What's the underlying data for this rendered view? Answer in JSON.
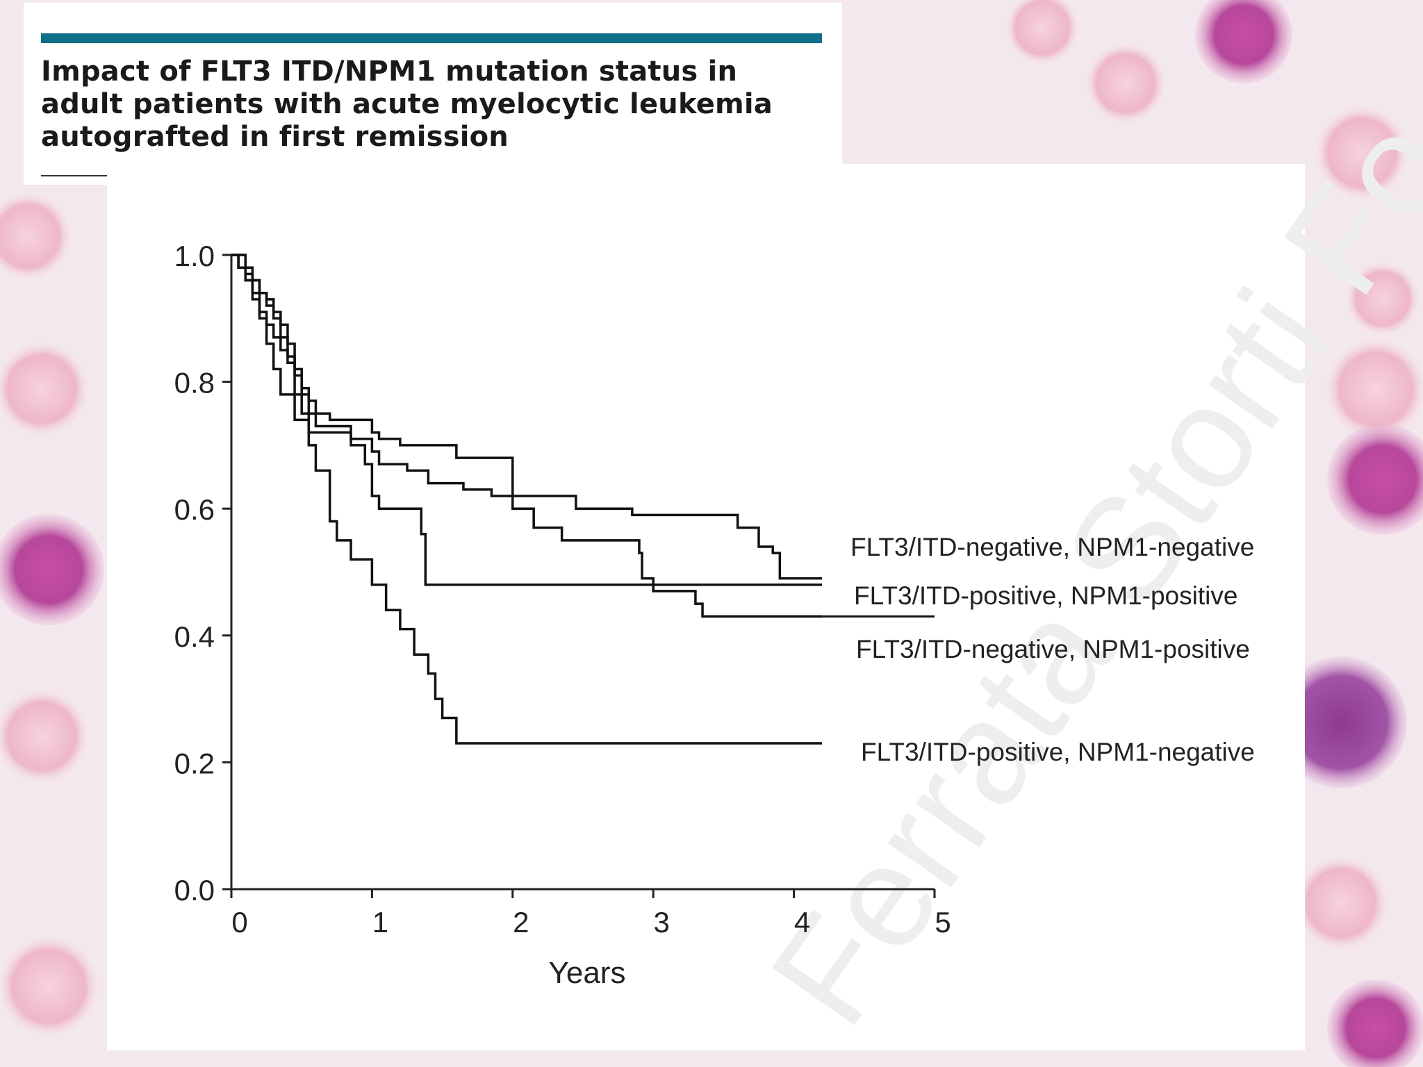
{
  "page": {
    "title": "Impact of FLT3 ITD/NPM1 mutation status in adult patients with acute myelocytic leukemia autografted in first remission",
    "title_lines": [
      "Impact of FLT3 ITD/NPM1 mutation status in",
      "adult patients with acute myelocytic leukemia",
      "autografted in first remission"
    ],
    "watermark": "Ferrata Storti Fo"
  },
  "colors": {
    "accent_bar": "#0e6f87",
    "curve": "#111111",
    "axis": "#222222",
    "text": "#222222",
    "watermark": "#f0f0f0"
  },
  "chart_data": {
    "type": "line",
    "subtype": "kaplan-meier step",
    "title": "",
    "xlabel": "Years",
    "ylabel": "",
    "xlim": [
      0,
      5
    ],
    "ylim": [
      0,
      1.0
    ],
    "xticks": [
      0,
      1,
      2,
      3,
      4,
      5
    ],
    "xtick_labels": [
      "0",
      "1",
      "2",
      "3",
      "4",
      "5"
    ],
    "yticks": [
      0.0,
      0.2,
      0.4,
      0.6,
      0.8,
      1.0
    ],
    "ytick_labels": [
      "0.0",
      "0.2",
      "0.4",
      "0.6",
      "0.8",
      "1.0"
    ],
    "grid": false,
    "series": [
      {
        "name": "FLT3/ITD-negative, NPM1-negative",
        "points": [
          [
            0,
            1.0
          ],
          [
            0.05,
            0.98
          ],
          [
            0.1,
            0.96
          ],
          [
            0.15,
            0.93
          ],
          [
            0.2,
            0.91
          ],
          [
            0.25,
            0.89
          ],
          [
            0.3,
            0.87
          ],
          [
            0.35,
            0.85
          ],
          [
            0.4,
            0.83
          ],
          [
            0.45,
            0.81
          ],
          [
            0.5,
            0.79
          ],
          [
            0.55,
            0.77
          ],
          [
            0.6,
            0.75
          ],
          [
            0.7,
            0.74
          ],
          [
            1.0,
            0.72
          ],
          [
            1.05,
            0.71
          ],
          [
            1.2,
            0.7
          ],
          [
            1.6,
            0.68
          ],
          [
            2.0,
            0.62
          ],
          [
            2.45,
            0.6
          ],
          [
            2.85,
            0.59
          ],
          [
            3.6,
            0.57
          ],
          [
            3.75,
            0.54
          ],
          [
            3.85,
            0.53
          ],
          [
            3.9,
            0.49
          ],
          [
            4.2,
            0.49
          ]
        ]
      },
      {
        "name": "FLT3/ITD-positive, NPM1-positive",
        "points": [
          [
            0,
            1.0
          ],
          [
            0.1,
            0.98
          ],
          [
            0.15,
            0.96
          ],
          [
            0.2,
            0.94
          ],
          [
            0.25,
            0.93
          ],
          [
            0.3,
            0.91
          ],
          [
            0.35,
            0.89
          ],
          [
            0.4,
            0.86
          ],
          [
            0.45,
            0.82
          ],
          [
            0.5,
            0.78
          ],
          [
            0.55,
            0.75
          ],
          [
            0.6,
            0.73
          ],
          [
            0.85,
            0.71
          ],
          [
            1.0,
            0.69
          ],
          [
            1.05,
            0.67
          ],
          [
            1.25,
            0.66
          ],
          [
            1.4,
            0.64
          ],
          [
            1.65,
            0.63
          ],
          [
            1.85,
            0.62
          ],
          [
            2.0,
            0.6
          ],
          [
            2.15,
            0.57
          ],
          [
            2.35,
            0.55
          ],
          [
            2.9,
            0.53
          ],
          [
            2.92,
            0.49
          ],
          [
            3.0,
            0.47
          ],
          [
            3.3,
            0.45
          ],
          [
            3.35,
            0.43
          ],
          [
            4.2,
            0.43
          ]
        ]
      },
      {
        "name": "FLT3/ITD-negative, NPM1-positive",
        "points": [
          [
            0,
            1.0
          ],
          [
            0.05,
            0.98
          ],
          [
            0.1,
            0.96
          ],
          [
            0.2,
            0.94
          ],
          [
            0.25,
            0.92
          ],
          [
            0.3,
            0.9
          ],
          [
            0.35,
            0.87
          ],
          [
            0.4,
            0.84
          ],
          [
            0.45,
            0.78
          ],
          [
            0.5,
            0.75
          ],
          [
            0.55,
            0.72
          ],
          [
            0.85,
            0.7
          ],
          [
            0.95,
            0.67
          ],
          [
            1.0,
            0.62
          ],
          [
            1.05,
            0.6
          ],
          [
            1.35,
            0.56
          ],
          [
            1.38,
            0.48
          ],
          [
            2.5,
            0.48
          ],
          [
            4.2,
            0.48
          ]
        ]
      },
      {
        "name": "FLT3/ITD-positive, NPM1-negative",
        "points": [
          [
            0,
            1.0
          ],
          [
            0.1,
            0.97
          ],
          [
            0.15,
            0.94
          ],
          [
            0.2,
            0.9
          ],
          [
            0.25,
            0.86
          ],
          [
            0.3,
            0.82
          ],
          [
            0.35,
            0.78
          ],
          [
            0.45,
            0.74
          ],
          [
            0.55,
            0.7
          ],
          [
            0.6,
            0.66
          ],
          [
            0.7,
            0.58
          ],
          [
            0.75,
            0.55
          ],
          [
            0.85,
            0.52
          ],
          [
            1.0,
            0.48
          ],
          [
            1.1,
            0.44
          ],
          [
            1.2,
            0.41
          ],
          [
            1.3,
            0.37
          ],
          [
            1.4,
            0.34
          ],
          [
            1.45,
            0.3
          ],
          [
            1.5,
            0.27
          ],
          [
            1.6,
            0.23
          ],
          [
            4.2,
            0.23
          ]
        ]
      }
    ],
    "legend": {
      "placement": "right of curves, labels adjacent to curve ends",
      "entries": [
        "FLT3/ITD-negative, NPM1-negative",
        "FLT3/ITD-positive, NPM1-positive",
        "FLT3/ITD-negative, NPM1-positive",
        "FLT3/ITD-positive, NPM1-negative"
      ]
    }
  }
}
